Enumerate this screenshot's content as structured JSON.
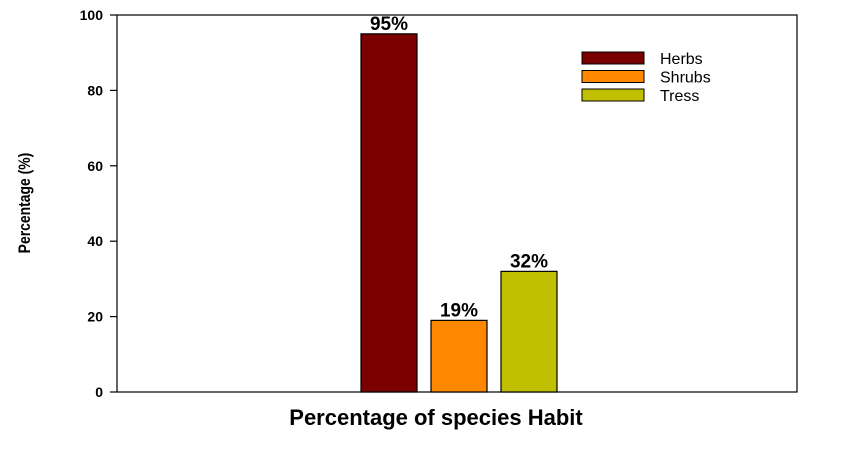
{
  "chart_data": {
    "type": "bar",
    "categories": [
      "Herbs",
      "Shrubs",
      "Tress"
    ],
    "values": [
      95,
      19,
      32
    ],
    "data_labels": [
      "95%",
      "19%",
      "32%"
    ],
    "colors": [
      "#7a0000",
      "#ff8800",
      "#c0c000"
    ],
    "xlabel": "Percentage of species Habit",
    "ylabel": "Percentage (%)",
    "ylim": [
      0,
      100
    ],
    "yticks": [
      0,
      20,
      40,
      60,
      80,
      100
    ],
    "ytick_labels": [
      "0",
      "20",
      "40",
      "60",
      "80",
      "100"
    ],
    "grid": false,
    "legend": {
      "position": "top-right",
      "entries": [
        "Herbs",
        "Shrubs",
        "Tress"
      ]
    }
  }
}
